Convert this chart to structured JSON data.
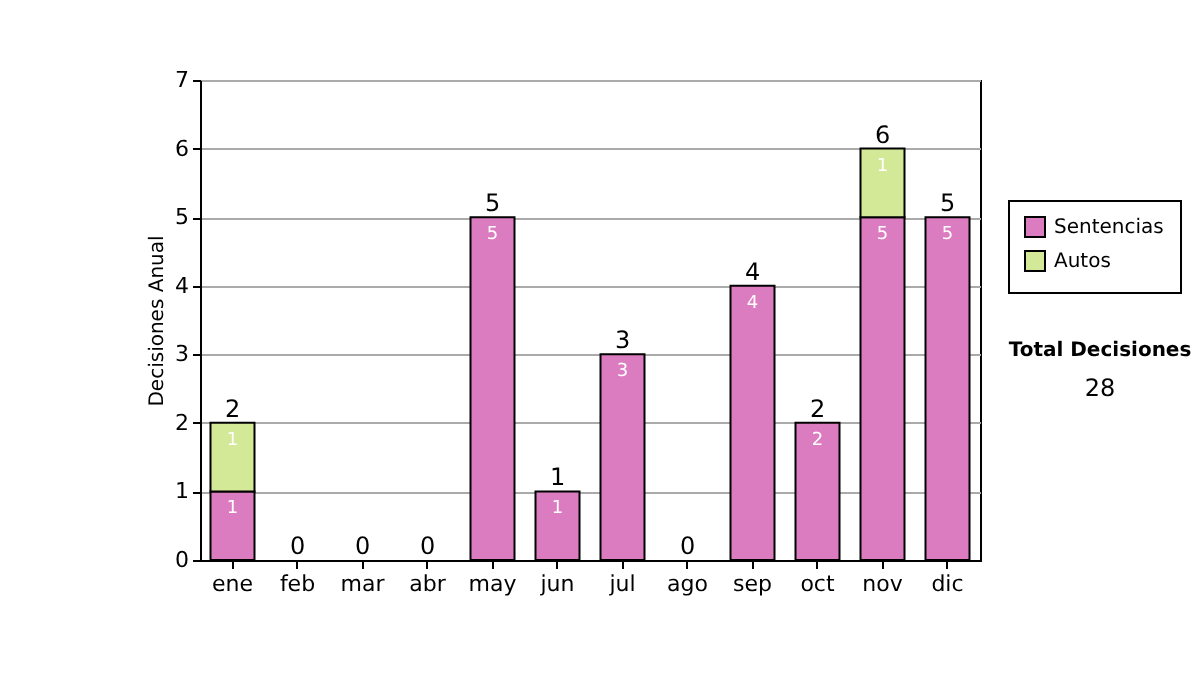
{
  "chart_data": {
    "type": "bar",
    "stacked": true,
    "ylabel": "Decisiones Anual",
    "categories": [
      "ene",
      "feb",
      "mar",
      "abr",
      "may",
      "jun",
      "jul",
      "ago",
      "sep",
      "oct",
      "nov",
      "dic"
    ],
    "series": [
      {
        "name": "Sentencias",
        "color": "#dc7cc0",
        "values": [
          1,
          0,
          0,
          0,
          5,
          1,
          3,
          0,
          4,
          2,
          5,
          5
        ],
        "value_labels": [
          "1",
          null,
          null,
          null,
          "5",
          "1",
          "3",
          null,
          "4",
          "2",
          "5",
          "5"
        ]
      },
      {
        "name": "Autos",
        "color": "#d3e997",
        "values": [
          1,
          0,
          0,
          0,
          0,
          0,
          0,
          0,
          0,
          0,
          1,
          0
        ],
        "value_labels": [
          "1",
          null,
          null,
          null,
          null,
          null,
          null,
          null,
          null,
          null,
          "1",
          null
        ]
      }
    ],
    "totals": [
      "2",
      "0",
      "0",
      "0",
      "5",
      "1",
      "3",
      "0",
      "4",
      "2",
      "6",
      "5"
    ],
    "ylim": [
      0,
      7
    ],
    "yticks": [
      0,
      1,
      2,
      3,
      4,
      5,
      6,
      7
    ],
    "grid": "y",
    "legend": "right",
    "annotations": [
      "Total Decisiones",
      "28"
    ]
  }
}
